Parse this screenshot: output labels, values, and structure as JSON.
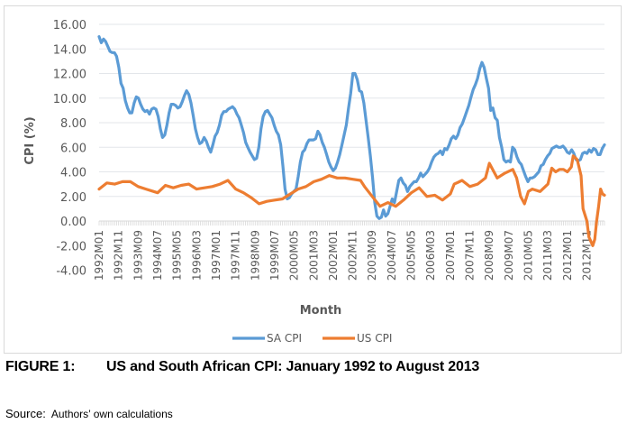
{
  "figure": {
    "number_label": "FIGURE 1:",
    "caption": "US and South African CPI: January 1992 to August 2013",
    "source_label": "Source:",
    "source_text": "Authors’ own calculations"
  },
  "chart_data": {
    "type": "line",
    "title": "",
    "xlabel": "Month",
    "ylabel": "CPI (%)",
    "ylim": [
      -4,
      16
    ],
    "yticks": [
      16,
      14,
      12,
      10,
      8,
      6,
      4,
      2,
      0,
      -2,
      -4
    ],
    "ytick_labels": [
      "16.00",
      "14.00",
      "12.00",
      "10.00",
      "8.00",
      "6.00",
      "4.00",
      "2.00",
      "0.00",
      "-2.00",
      "-4.00"
    ],
    "x_start": "1992M01",
    "x_end": "2013M08",
    "n_months": 260,
    "xtick_labels": [
      "1992M01",
      "1992M11",
      "1993M09",
      "1994M07",
      "1995M05",
      "1996M03",
      "1997M01",
      "1997M11",
      "1998M09",
      "1999M07",
      "2000M05",
      "2001M03",
      "2002M01",
      "2002M11",
      "2003M09",
      "2004M07",
      "2005M05",
      "2006M03",
      "2007M01",
      "2007M11",
      "2008M09",
      "2009M07",
      "2010M05",
      "2011M03",
      "2012M01",
      "2012M11"
    ],
    "xtick_step_months": 10,
    "grid": true,
    "legend_position": "bottom",
    "series": [
      {
        "name": "SA CPI",
        "color": "#5B9BD5",
        "points": [
          [
            0,
            15.0
          ],
          [
            1,
            14.5
          ],
          [
            2,
            14.8
          ],
          [
            3,
            14.6
          ],
          [
            4,
            14.2
          ],
          [
            5,
            13.8
          ],
          [
            6,
            13.7
          ],
          [
            7,
            13.7
          ],
          [
            8,
            13.4
          ],
          [
            9,
            12.5
          ],
          [
            10,
            11.2
          ],
          [
            11,
            10.8
          ],
          [
            12,
            9.8
          ],
          [
            13,
            9.2
          ],
          [
            14,
            8.8
          ],
          [
            15,
            8.8
          ],
          [
            16,
            9.6
          ],
          [
            17,
            10.1
          ],
          [
            18,
            10.0
          ],
          [
            19,
            9.5
          ],
          [
            20,
            9.1
          ],
          [
            21,
            8.9
          ],
          [
            22,
            9.0
          ],
          [
            23,
            8.7
          ],
          [
            24,
            9.1
          ],
          [
            25,
            9.2
          ],
          [
            26,
            9.1
          ],
          [
            27,
            8.5
          ],
          [
            28,
            7.5
          ],
          [
            29,
            6.8
          ],
          [
            30,
            7.0
          ],
          [
            31,
            7.8
          ],
          [
            32,
            8.8
          ],
          [
            33,
            9.5
          ],
          [
            34,
            9.5
          ],
          [
            35,
            9.4
          ],
          [
            36,
            9.2
          ],
          [
            37,
            9.3
          ],
          [
            38,
            9.7
          ],
          [
            39,
            10.2
          ],
          [
            40,
            10.6
          ],
          [
            41,
            10.3
          ],
          [
            42,
            9.6
          ],
          [
            43,
            8.6
          ],
          [
            44,
            7.5
          ],
          [
            45,
            6.8
          ],
          [
            46,
            6.3
          ],
          [
            47,
            6.4
          ],
          [
            48,
            6.8
          ],
          [
            49,
            6.5
          ],
          [
            50,
            6.0
          ],
          [
            51,
            5.6
          ],
          [
            52,
            6.2
          ],
          [
            53,
            6.9
          ],
          [
            54,
            7.2
          ],
          [
            55,
            7.8
          ],
          [
            56,
            8.6
          ],
          [
            57,
            8.9
          ],
          [
            58,
            8.9
          ],
          [
            59,
            9.1
          ],
          [
            60,
            9.2
          ],
          [
            61,
            9.3
          ],
          [
            62,
            9.1
          ],
          [
            63,
            8.7
          ],
          [
            64,
            8.4
          ],
          [
            65,
            7.8
          ],
          [
            66,
            7.2
          ],
          [
            67,
            6.4
          ],
          [
            68,
            6.0
          ],
          [
            69,
            5.6
          ],
          [
            70,
            5.3
          ],
          [
            71,
            5.0
          ],
          [
            72,
            5.1
          ],
          [
            73,
            6.0
          ],
          [
            74,
            7.5
          ],
          [
            75,
            8.5
          ],
          [
            76,
            8.9
          ],
          [
            77,
            9.0
          ],
          [
            78,
            8.7
          ],
          [
            79,
            8.4
          ],
          [
            80,
            7.8
          ],
          [
            81,
            7.3
          ],
          [
            82,
            7.0
          ],
          [
            83,
            6.2
          ],
          [
            84,
            4.5
          ],
          [
            85,
            2.6
          ],
          [
            86,
            1.8
          ],
          [
            87,
            1.9
          ],
          [
            88,
            2.2
          ],
          [
            89,
            2.4
          ],
          [
            90,
            2.6
          ],
          [
            91,
            3.6
          ],
          [
            92,
            4.8
          ],
          [
            93,
            5.6
          ],
          [
            94,
            5.8
          ],
          [
            95,
            6.3
          ],
          [
            96,
            6.6
          ],
          [
            97,
            6.6
          ],
          [
            98,
            6.6
          ],
          [
            99,
            6.7
          ],
          [
            100,
            7.3
          ],
          [
            101,
            7.0
          ],
          [
            102,
            6.4
          ],
          [
            103,
            6.0
          ],
          [
            104,
            5.4
          ],
          [
            105,
            4.8
          ],
          [
            106,
            4.4
          ],
          [
            107,
            4.1
          ],
          [
            108,
            4.3
          ],
          [
            109,
            4.8
          ],
          [
            110,
            5.4
          ],
          [
            111,
            6.2
          ],
          [
            112,
            7.0
          ],
          [
            113,
            7.8
          ],
          [
            114,
            9.2
          ],
          [
            115,
            10.4
          ],
          [
            116,
            12.0
          ],
          [
            117,
            12.0
          ],
          [
            118,
            11.5
          ],
          [
            119,
            10.6
          ],
          [
            120,
            10.5
          ],
          [
            121,
            9.6
          ],
          [
            122,
            8.2
          ],
          [
            123,
            6.8
          ],
          [
            124,
            5.3
          ],
          [
            125,
            3.5
          ],
          [
            126,
            1.5
          ],
          [
            127,
            0.4
          ],
          [
            128,
            0.2
          ],
          [
            129,
            0.3
          ],
          [
            130,
            0.9
          ],
          [
            131,
            0.4
          ],
          [
            132,
            0.6
          ],
          [
            133,
            1.2
          ],
          [
            134,
            1.8
          ],
          [
            135,
            1.5
          ],
          [
            136,
            2.4
          ],
          [
            137,
            3.3
          ],
          [
            138,
            3.5
          ],
          [
            139,
            3.1
          ],
          [
            140,
            2.9
          ],
          [
            141,
            2.4
          ],
          [
            142,
            2.8
          ],
          [
            143,
            3.0
          ],
          [
            144,
            3.2
          ],
          [
            145,
            3.2
          ],
          [
            146,
            3.5
          ],
          [
            147,
            3.9
          ],
          [
            148,
            3.6
          ],
          [
            149,
            3.8
          ],
          [
            150,
            4.0
          ],
          [
            151,
            4.3
          ],
          [
            152,
            4.8
          ],
          [
            153,
            5.2
          ],
          [
            154,
            5.4
          ],
          [
            155,
            5.5
          ],
          [
            156,
            5.7
          ],
          [
            157,
            5.4
          ],
          [
            158,
            5.9
          ],
          [
            159,
            5.8
          ],
          [
            160,
            6.2
          ],
          [
            161,
            6.7
          ],
          [
            162,
            6.9
          ],
          [
            163,
            6.7
          ],
          [
            164,
            7.0
          ],
          [
            165,
            7.6
          ],
          [
            166,
            7.9
          ],
          [
            167,
            8.4
          ],
          [
            168,
            8.9
          ],
          [
            169,
            9.4
          ],
          [
            170,
            10.1
          ],
          [
            171,
            10.7
          ],
          [
            172,
            11.1
          ],
          [
            173,
            11.6
          ],
          [
            174,
            12.4
          ],
          [
            175,
            12.9
          ],
          [
            176,
            12.5
          ],
          [
            177,
            11.6
          ],
          [
            178,
            10.8
          ],
          [
            179,
            9.0
          ],
          [
            180,
            9.2
          ],
          [
            181,
            8.4
          ],
          [
            182,
            8.2
          ],
          [
            183,
            6.8
          ],
          [
            184,
            6.0
          ],
          [
            185,
            5.0
          ],
          [
            186,
            4.8
          ],
          [
            187,
            4.9
          ],
          [
            188,
            4.8
          ],
          [
            189,
            6.0
          ],
          [
            190,
            5.8
          ],
          [
            191,
            5.2
          ],
          [
            192,
            4.8
          ],
          [
            193,
            4.6
          ],
          [
            194,
            4.1
          ],
          [
            195,
            3.6
          ],
          [
            196,
            3.2
          ],
          [
            197,
            3.5
          ],
          [
            198,
            3.5
          ],
          [
            199,
            3.6
          ],
          [
            200,
            3.8
          ],
          [
            201,
            4.0
          ],
          [
            202,
            4.5
          ],
          [
            203,
            4.6
          ],
          [
            204,
            5.0
          ],
          [
            205,
            5.3
          ],
          [
            206,
            5.5
          ],
          [
            207,
            5.9
          ],
          [
            208,
            6.0
          ],
          [
            209,
            6.1
          ],
          [
            210,
            6.0
          ],
          [
            211,
            6.0
          ],
          [
            212,
            6.1
          ],
          [
            213,
            5.9
          ],
          [
            214,
            5.6
          ],
          [
            215,
            5.5
          ],
          [
            216,
            5.8
          ],
          [
            217,
            5.5
          ],
          [
            218,
            5.0
          ],
          [
            219,
            4.9
          ],
          [
            220,
            5.0
          ],
          [
            221,
            5.5
          ],
          [
            222,
            5.6
          ],
          [
            223,
            5.5
          ],
          [
            224,
            5.8
          ],
          [
            225,
            5.6
          ],
          [
            226,
            5.9
          ],
          [
            227,
            5.8
          ],
          [
            228,
            5.4
          ],
          [
            229,
            5.4
          ],
          [
            230,
            5.9
          ],
          [
            231,
            6.2
          ]
        ],
        "note": "values sampled by month index; series drawn across full x-range"
      },
      {
        "name": "US CPI",
        "color": "#ED7D31",
        "points": [
          [
            0,
            2.6
          ],
          [
            4,
            3.1
          ],
          [
            8,
            3.0
          ],
          [
            12,
            3.2
          ],
          [
            16,
            3.2
          ],
          [
            20,
            2.8
          ],
          [
            24,
            2.6
          ],
          [
            28,
            2.4
          ],
          [
            30,
            2.3
          ],
          [
            34,
            2.9
          ],
          [
            38,
            2.7
          ],
          [
            42,
            2.9
          ],
          [
            46,
            3.0
          ],
          [
            50,
            2.6
          ],
          [
            54,
            2.7
          ],
          [
            58,
            2.8
          ],
          [
            62,
            3.0
          ],
          [
            66,
            3.3
          ],
          [
            70,
            2.6
          ],
          [
            74,
            2.3
          ],
          [
            78,
            1.9
          ],
          [
            82,
            1.4
          ],
          [
            86,
            1.6
          ],
          [
            90,
            1.7
          ],
          [
            94,
            1.8
          ],
          [
            98,
            2.2
          ],
          [
            102,
            2.6
          ],
          [
            106,
            2.8
          ],
          [
            110,
            3.2
          ],
          [
            114,
            3.4
          ],
          [
            118,
            3.7
          ],
          [
            122,
            3.5
          ],
          [
            126,
            3.5
          ],
          [
            130,
            3.4
          ],
          [
            134,
            3.3
          ],
          [
            136,
            2.8
          ],
          [
            140,
            2.0
          ],
          [
            144,
            1.2
          ],
          [
            148,
            1.5
          ],
          [
            152,
            1.2
          ],
          [
            156,
            1.7
          ],
          [
            160,
            2.3
          ],
          [
            164,
            2.7
          ],
          [
            168,
            2.0
          ],
          [
            172,
            2.1
          ],
          [
            176,
            1.7
          ],
          [
            180,
            2.2
          ],
          [
            182,
            3.0
          ],
          [
            186,
            3.3
          ],
          [
            190,
            2.8
          ],
          [
            194,
            3.0
          ],
          [
            198,
            3.5
          ],
          [
            200,
            4.7
          ],
          [
            204,
            3.5
          ],
          [
            208,
            3.9
          ],
          [
            212,
            4.2
          ],
          [
            214,
            3.5
          ],
          [
            216,
            2.0
          ],
          [
            218,
            1.4
          ],
          [
            220,
            2.4
          ],
          [
            222,
            2.6
          ],
          [
            226,
            2.4
          ],
          [
            230,
            3.0
          ],
          [
            232,
            4.3
          ],
          [
            234,
            4.0
          ],
          [
            236,
            4.2
          ],
          [
            238,
            4.2
          ],
          [
            240,
            4.0
          ],
          [
            242,
            4.4
          ],
          [
            243,
            5.3
          ],
          [
            245,
            5.0
          ],
          [
            247,
            3.7
          ],
          [
            248,
            1.0
          ],
          [
            250,
            0.0
          ],
          [
            251,
            -1.3
          ],
          [
            253,
            -2.0
          ],
          [
            254,
            -1.5
          ],
          [
            255,
            0.0
          ],
          [
            256,
            1.2
          ],
          [
            257,
            2.6
          ],
          [
            258,
            2.2
          ],
          [
            259,
            2.1
          ]
        ],
        "note": ""
      }
    ]
  }
}
